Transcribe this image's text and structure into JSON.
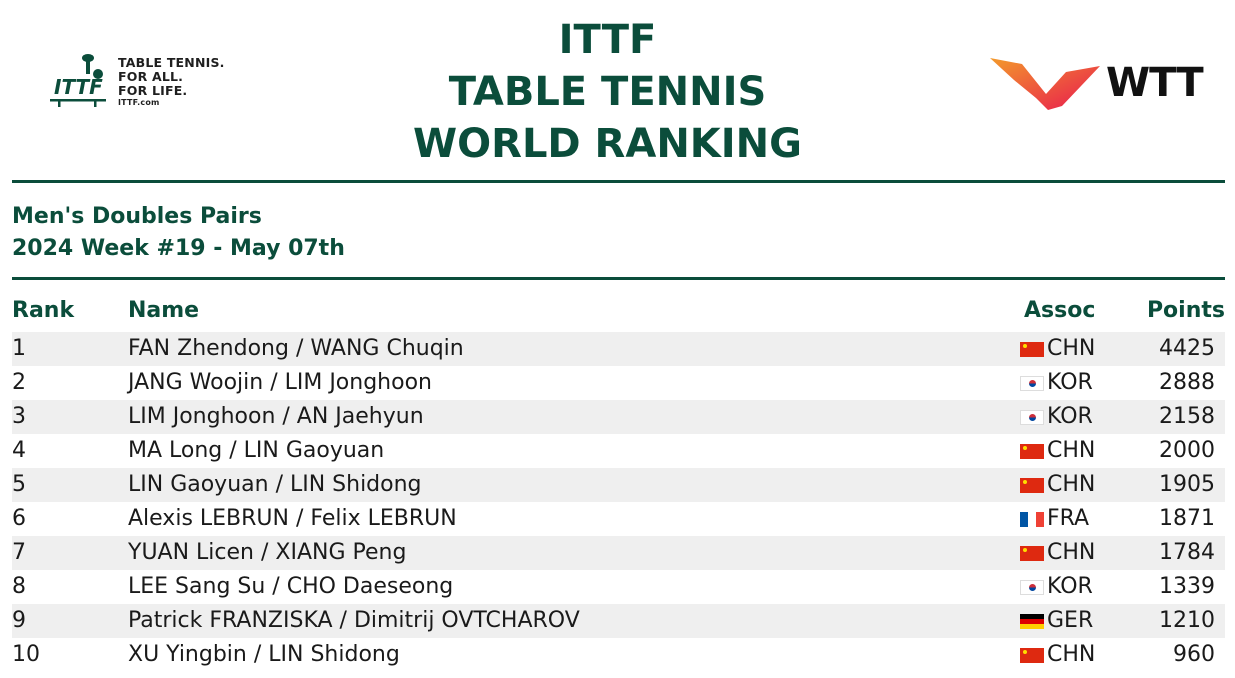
{
  "header": {
    "title_lines": [
      "ITTF",
      "TABLE TENNIS",
      "WORLD RANKING"
    ],
    "ittf_logo": {
      "icon": "ittf-logo-icon",
      "slogan": [
        "TABLE TENNIS.",
        "FOR ALL.",
        "FOR LIFE."
      ],
      "url": "ITTF.com",
      "color": "#0b4d3b"
    },
    "wtt_logo": {
      "icon": "wtt-logo-icon",
      "text": "WTT",
      "colors": [
        "#f39a2b",
        "#e8174f"
      ]
    }
  },
  "subtitle": {
    "category": "Men's Doubles Pairs",
    "week": "2024 Week #19 - May 07th"
  },
  "table": {
    "headers": {
      "rank": "Rank",
      "name": "Name",
      "assoc": "Assoc",
      "points": "Points"
    },
    "rows": [
      {
        "rank": "1",
        "name": "FAN Zhendong / WANG Chuqin",
        "flag": "chn",
        "assoc": "CHN",
        "points": "4425"
      },
      {
        "rank": "2",
        "name": "JANG Woojin / LIM Jonghoon",
        "flag": "kor",
        "assoc": "KOR",
        "points": "2888"
      },
      {
        "rank": "3",
        "name": "LIM Jonghoon / AN Jaehyun",
        "flag": "kor",
        "assoc": "KOR",
        "points": "2158"
      },
      {
        "rank": "4",
        "name": "MA Long / LIN Gaoyuan",
        "flag": "chn",
        "assoc": "CHN",
        "points": "2000"
      },
      {
        "rank": "5",
        "name": "LIN Gaoyuan / LIN Shidong",
        "flag": "chn",
        "assoc": "CHN",
        "points": "1905"
      },
      {
        "rank": "6",
        "name": "Alexis LEBRUN / Felix LEBRUN",
        "flag": "fra",
        "assoc": "FRA",
        "points": "1871"
      },
      {
        "rank": "7",
        "name": "YUAN Licen / XIANG Peng",
        "flag": "chn",
        "assoc": "CHN",
        "points": "1784"
      },
      {
        "rank": "8",
        "name": "LEE Sang Su / CHO Daeseong",
        "flag": "kor",
        "assoc": "KOR",
        "points": "1339"
      },
      {
        "rank": "9",
        "name": "Patrick FRANZISKA / Dimitrij OVTCHAROV",
        "flag": "ger",
        "assoc": "GER",
        "points": "1210"
      },
      {
        "rank": "10",
        "name": "XU Yingbin / LIN Shidong",
        "flag": "chn",
        "assoc": "CHN",
        "points": "960"
      }
    ]
  },
  "colors": {
    "accent": "#0b4d3b",
    "row_shade": "#efefef"
  }
}
